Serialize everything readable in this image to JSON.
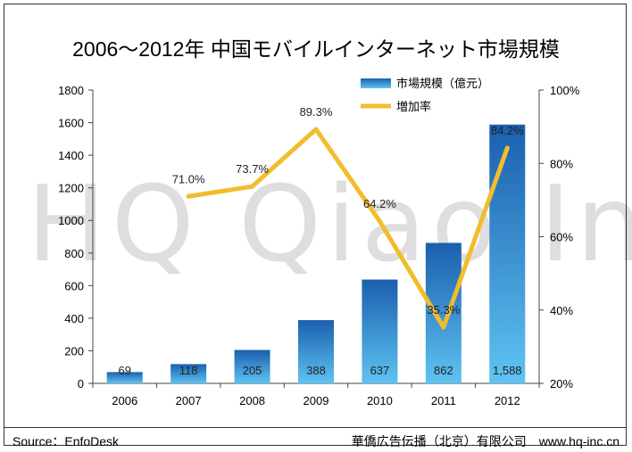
{
  "title": "2006～2012年 中国モバイルインターネット市場規模",
  "watermark": "HQ Qiao Inc.",
  "footer": {
    "source": "Source：EnfoDesk",
    "publisher": "華僑広告伝播（北京）有限公司",
    "url": "www.hq-inc.cn"
  },
  "colors": {
    "bar_top": "#1a5fae",
    "bar_bottom": "#5fc3f2",
    "line": "#f2bd2c",
    "axis": "#444444"
  },
  "chart_data": {
    "type": "bar+line",
    "categories": [
      "2006",
      "2007",
      "2008",
      "2009",
      "2010",
      "2011",
      "2012"
    ],
    "series": [
      {
        "name": "市場規模（億元）",
        "type": "bar",
        "axis": "left",
        "values": [
          69,
          118,
          205,
          388,
          637,
          862,
          1588
        ],
        "labels": [
          "69",
          "118",
          "205",
          "388",
          "637",
          "862",
          "1,588"
        ]
      },
      {
        "name": "増加率",
        "type": "line",
        "axis": "right",
        "values": [
          null,
          71.0,
          73.7,
          89.3,
          64.2,
          35.3,
          84.2
        ],
        "labels": [
          "",
          "71.0%",
          "73.7%",
          "89.3%",
          "64.2%",
          "35.3%",
          "84.2%"
        ]
      }
    ],
    "y_left": {
      "min": 0,
      "max": 1800,
      "ticks": [
        0,
        200,
        400,
        600,
        800,
        1000,
        1200,
        1400,
        1600,
        1800
      ],
      "tick_labels": [
        "0",
        "200",
        "400",
        "600",
        "800",
        "1000",
        "1200",
        "1400",
        "1600",
        "1800"
      ]
    },
    "y_right": {
      "min": 20,
      "max": 100,
      "ticks": [
        20,
        40,
        60,
        80,
        100
      ],
      "tick_labels": [
        "20%",
        "40%",
        "60%",
        "80%",
        "100%"
      ]
    },
    "legend_position": "top-right"
  }
}
